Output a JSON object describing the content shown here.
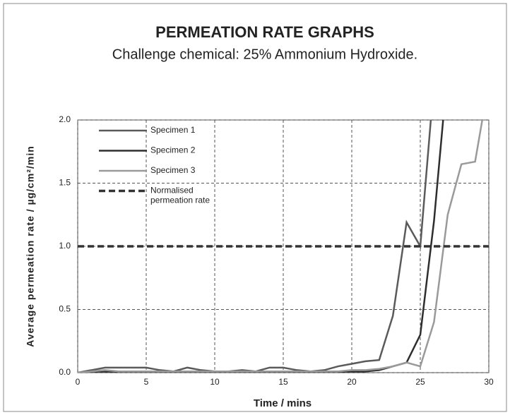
{
  "chart_data": {
    "type": "line",
    "title": "PERMEATION RATE GRAPHS",
    "subtitle": "Challenge chemical: 25% Ammonium Hydroxide.",
    "x_label": "Time / mins",
    "y_label": "Average permeation rate / µg/cm²/min",
    "x": [
      0,
      1,
      2,
      3,
      4,
      5,
      6,
      7,
      8,
      9,
      10,
      11,
      12,
      13,
      14,
      15,
      16,
      17,
      18,
      19,
      20,
      21,
      22,
      23,
      24,
      25,
      26,
      27,
      28,
      29,
      30
    ],
    "series": [
      {
        "name": "Specimen 1",
        "color": "#5a5a5a",
        "dash": false,
        "values": [
          0,
          0.02,
          0.04,
          0.04,
          0.04,
          0.04,
          0.02,
          0.01,
          0.04,
          0.02,
          0.01,
          0.01,
          0.02,
          0.01,
          0.04,
          0.04,
          0.02,
          0.01,
          0.02,
          0.05,
          0.07,
          0.09,
          0.1,
          0.45,
          1.19,
          1.0,
          2.3,
          null,
          null,
          null,
          null
        ]
      },
      {
        "name": "Specimen 2",
        "color": "#2e2e2e",
        "dash": false,
        "values": [
          0,
          0.01,
          0.01,
          0.01,
          0.01,
          0.01,
          0.01,
          0.01,
          0.01,
          0.01,
          0.01,
          0.01,
          0.01,
          0.01,
          0.01,
          0.01,
          0.01,
          0.01,
          0.01,
          0.01,
          0.01,
          0.01,
          0.02,
          0.05,
          0.08,
          0.3,
          1.2,
          2.4,
          null,
          null,
          null
        ]
      },
      {
        "name": "Specimen 3",
        "color": "#9a9a9a",
        "dash": false,
        "values": [
          0,
          0.01,
          0.02,
          0.01,
          0.01,
          0.01,
          0.01,
          0.01,
          0.01,
          0.01,
          0.01,
          0.01,
          0.01,
          0.01,
          0.01,
          0.01,
          0.01,
          0.01,
          0.01,
          0.01,
          0.02,
          0.02,
          0.03,
          0.05,
          0.08,
          0.05,
          0.4,
          1.25,
          1.65,
          1.67,
          2.3
        ]
      },
      {
        "name": "Normalised permeation rate",
        "color": "#333333",
        "dash": true,
        "values": [
          1,
          1,
          1,
          1,
          1,
          1,
          1,
          1,
          1,
          1,
          1,
          1,
          1,
          1,
          1,
          1,
          1,
          1,
          1,
          1,
          1,
          1,
          1,
          1,
          1,
          1,
          1,
          1,
          1,
          1,
          1
        ]
      }
    ],
    "xlim": [
      0,
      30
    ],
    "xticks": [
      0,
      5,
      10,
      15,
      20,
      25,
      30
    ],
    "ylim": [
      0,
      2
    ],
    "yticks": [
      {
        "value": 0,
        "label": "0.0"
      },
      {
        "value": 0.5,
        "label": "0.5"
      },
      {
        "value": 1,
        "label": "1.0"
      },
      {
        "value": 1.5,
        "label": "1.5"
      },
      {
        "value": 2,
        "label": "2.0"
      }
    ],
    "grid": true,
    "legend": "top-left"
  }
}
